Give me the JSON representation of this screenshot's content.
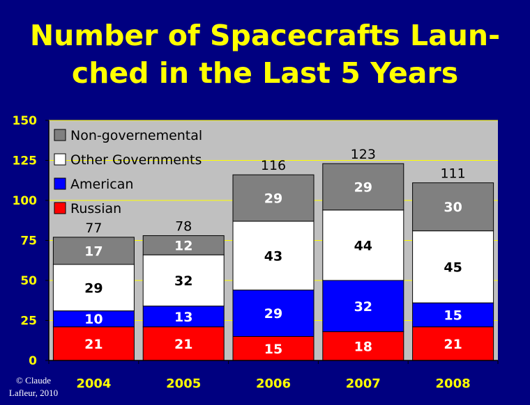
{
  "title_lines": [
    "Number of Spacecrafts Laun-",
    "ched in the Last 5 Years"
  ],
  "credit_lines": [
    "© Claude",
    "Lafleur, 2010"
  ],
  "colors": {
    "background": "#000080",
    "plot_area": "#c0c0c0",
    "title": "#ffff00",
    "axis_text": "#ffff00",
    "gridline": "#ffff00",
    "Russian": "#ff0000",
    "American": "#0000ff",
    "Other Governments": "#ffffff",
    "Non-governemental": "#808080"
  },
  "chart_data": {
    "type": "bar",
    "stacked": true,
    "categories": [
      "2004",
      "2005",
      "2006",
      "2007",
      "2008"
    ],
    "series": [
      {
        "name": "Russian",
        "values": [
          21,
          21,
          15,
          18,
          21
        ]
      },
      {
        "name": "American",
        "values": [
          10,
          13,
          29,
          32,
          15
        ]
      },
      {
        "name": "Other Governments",
        "values": [
          29,
          32,
          43,
          44,
          45
        ]
      },
      {
        "name": "Non-governemental",
        "values": [
          17,
          12,
          29,
          29,
          30
        ]
      }
    ],
    "totals": [
      77,
      78,
      116,
      123,
      111
    ],
    "legend_order": [
      "Non-governemental",
      "Other Governments",
      "American",
      "Russian"
    ],
    "legend_position": "top-left",
    "ylim": [
      0,
      150
    ],
    "yticks": [
      0,
      25,
      50,
      75,
      100,
      125,
      150
    ],
    "grid": true
  }
}
